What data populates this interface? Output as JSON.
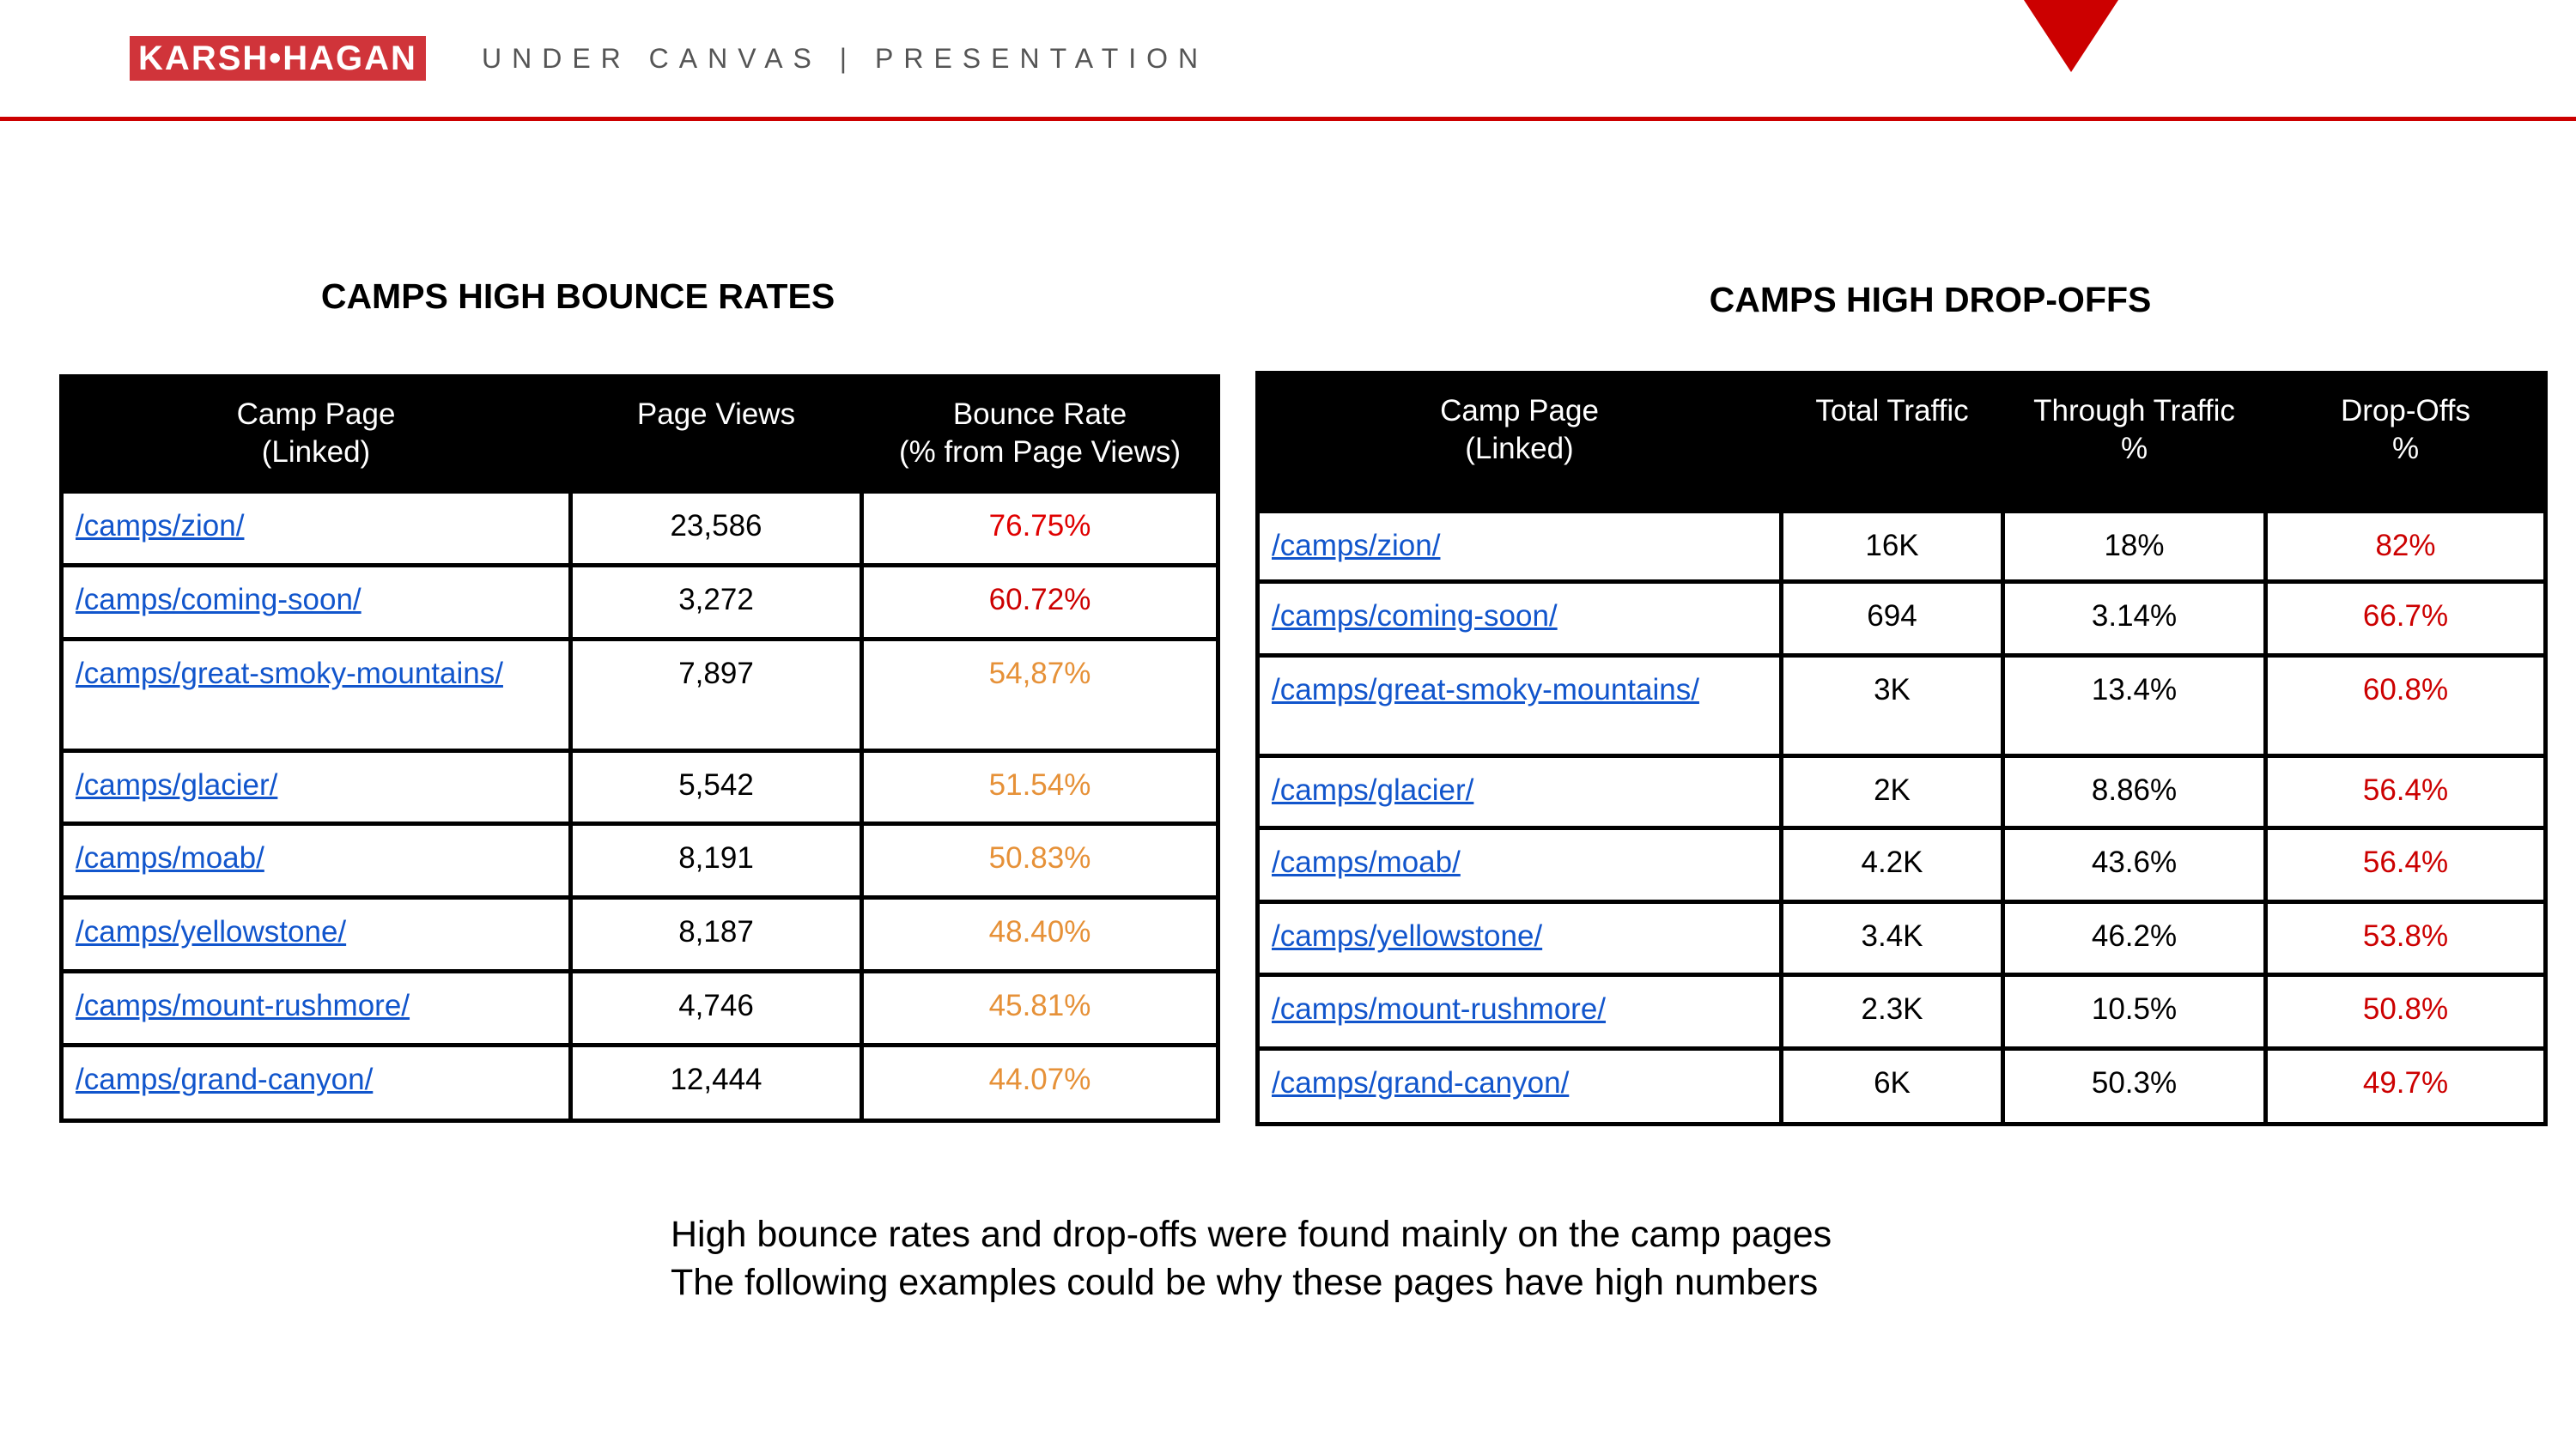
{
  "header": {
    "logo_text": "KARSH•HAGAN",
    "subtitle": "UNDER CANVAS | PRESENTATION"
  },
  "colors": {
    "red": "#e00000",
    "dark_red": "#cc0000",
    "orange": "#e69138",
    "link": "#1155cc"
  },
  "bounce_table": {
    "title": "CAMPS HIGH BOUNCE RATES",
    "headers": [
      "Camp Page\n(Linked)",
      "Page Views",
      "Bounce Rate\n(% from Page Views)"
    ],
    "rows": [
      {
        "page": "/camps/zion/",
        "views": "23,586",
        "rate": "76.75%",
        "tone": "red"
      },
      {
        "page": "/camps/coming-soon/",
        "views": "3,272",
        "rate": "60.72%",
        "tone": "dark_red"
      },
      {
        "page": "/camps/great-smoky-mountains/",
        "views": "7,897",
        "rate": "54,87%",
        "tone": "orange"
      },
      {
        "page": "/camps/glacier/",
        "views": "5,542",
        "rate": "51.54%",
        "tone": "orange"
      },
      {
        "page": "/camps/moab/",
        "views": "8,191",
        "rate": "50.83%",
        "tone": "orange"
      },
      {
        "page": "/camps/yellowstone/",
        "views": "8,187",
        "rate": "48.40%",
        "tone": "orange"
      },
      {
        "page": "/camps/mount-rushmore/",
        "views": "4,746",
        "rate": "45.81%",
        "tone": "orange"
      },
      {
        "page": "/camps/grand-canyon/",
        "views": "12,444",
        "rate": "44.07%",
        "tone": "orange"
      }
    ]
  },
  "dropoff_table": {
    "title": "CAMPS HIGH DROP-OFFS",
    "headers": [
      "Camp Page\n(Linked)",
      "Total Traffic",
      "Through Traffic\n%",
      "Drop-Offs\n%"
    ],
    "rows": [
      {
        "page": "/camps/zion/",
        "total": "16K",
        "through": "18%",
        "drop": "82%"
      },
      {
        "page": "/camps/coming-soon/",
        "total": "694",
        "through": "3.14%",
        "drop": "66.7%"
      },
      {
        "page": "/camps/great-smoky-mountains/",
        "total": "3K",
        "through": "13.4%",
        "drop": "60.8%"
      },
      {
        "page": "/camps/glacier/",
        "total": "2K",
        "through": "8.86%",
        "drop": "56.4%"
      },
      {
        "page": "/camps/moab/",
        "total": "4.2K",
        "through": "43.6%",
        "drop": "56.4%"
      },
      {
        "page": "/camps/yellowstone/",
        "total": "3.4K",
        "through": "46.2%",
        "drop": "53.8%"
      },
      {
        "page": "/camps/mount-rushmore/",
        "total": "2.3K",
        "through": "10.5%",
        "drop": "50.8%"
      },
      {
        "page": "/camps/grand-canyon/",
        "total": "6K",
        "through": "50.3%",
        "drop": "49.7%"
      }
    ]
  },
  "footer": {
    "line1": "High bounce rates and drop-offs were found mainly on the camp pages",
    "line2": "The following examples could be why these pages have high numbers"
  }
}
